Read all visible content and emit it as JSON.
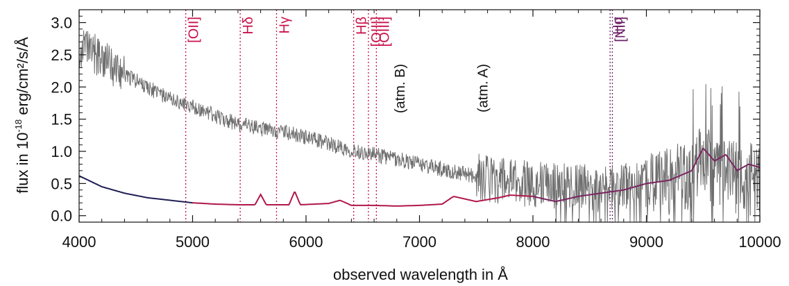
{
  "chart_data": {
    "type": "line",
    "title": "",
    "xlabel": "observed wavelength in Å",
    "ylabel_parts": {
      "prefix": "flux in 10",
      "exponent": "-18",
      "suffix": " erg/cm²/s/Å"
    },
    "xlim": [
      4000,
      10000
    ],
    "ylim": [
      -0.1,
      3.2
    ],
    "xticks": [
      4000,
      5000,
      6000,
      7000,
      8000,
      9000,
      10000
    ],
    "yticks": [
      0.0,
      0.5,
      1.0,
      1.5,
      2.0,
      2.5,
      3.0
    ],
    "xtick_labels": [
      "4000",
      "5000",
      "6000",
      "7000",
      "8000",
      "9000",
      "10000"
    ],
    "ytick_labels": [
      "0.0",
      "0.5",
      "1.0",
      "1.5",
      "2.0",
      "2.5",
      "3.0"
    ],
    "colors": {
      "observed": "#6e6e6e",
      "model_blue": "#1c1c52",
      "model_red": "#b0164a",
      "model_purple": "#7a2560",
      "line_red": "#c8104a",
      "line_purple": "#6e2068",
      "atm": "#111111"
    },
    "series": [
      {
        "role": "observed",
        "x": [
          4000,
          4100,
          4200,
          4300,
          4400,
          4500,
          4600,
          4700,
          4800,
          4900,
          5000,
          5200,
          5400,
          5600,
          5800,
          6000,
          6200,
          6400,
          6600,
          6800,
          7000,
          7200,
          7400,
          7600,
          7800,
          8000,
          8200,
          8400,
          8600,
          8800,
          9000,
          9200,
          9400,
          9500,
          9600,
          9800,
          10000
        ],
        "y": [
          2.6,
          2.55,
          2.45,
          2.3,
          2.2,
          2.1,
          2.0,
          1.9,
          1.82,
          1.75,
          1.7,
          1.55,
          1.42,
          1.35,
          1.3,
          1.22,
          1.12,
          1.02,
          0.95,
          0.88,
          0.8,
          0.72,
          0.65,
          0.58,
          0.52,
          0.5,
          0.48,
          0.45,
          0.42,
          0.45,
          0.5,
          0.55,
          0.65,
          0.85,
          0.7,
          0.6,
          0.55
        ]
      },
      {
        "role": "model",
        "x": [
          4000,
          4200,
          4400,
          4600,
          4800,
          5000,
          5200,
          5400,
          5550,
          5600,
          5650,
          5850,
          5900,
          5950,
          6200,
          6300,
          6400,
          6600,
          6800,
          7000,
          7200,
          7300,
          7500,
          7700,
          7800,
          8000,
          8200,
          8400,
          8600,
          8800,
          9000,
          9200,
          9400,
          9500,
          9600,
          9700,
          9800,
          9900,
          10000
        ],
        "y": [
          0.62,
          0.45,
          0.35,
          0.28,
          0.24,
          0.2,
          0.18,
          0.17,
          0.17,
          0.33,
          0.17,
          0.17,
          0.38,
          0.17,
          0.19,
          0.24,
          0.16,
          0.16,
          0.15,
          0.16,
          0.18,
          0.3,
          0.22,
          0.28,
          0.32,
          0.3,
          0.22,
          0.3,
          0.35,
          0.4,
          0.5,
          0.55,
          0.7,
          1.05,
          0.85,
          0.95,
          0.7,
          0.8,
          0.75
        ]
      }
    ],
    "emission_lines": [
      {
        "label": "[OII]",
        "x": 4940,
        "group": "red"
      },
      {
        "label": "Hδ",
        "x": 5420,
        "group": "red"
      },
      {
        "label": "Hγ",
        "x": 5740,
        "group": "red"
      },
      {
        "label": "Hβ",
        "x": 6420,
        "group": "red"
      },
      {
        "label": "[OIII]",
        "x": 6550,
        "group": "red"
      },
      {
        "label": "[OIII]",
        "x": 6620,
        "group": "red"
      },
      {
        "label": "Hα",
        "x": 8680,
        "group": "purple"
      },
      {
        "label": "[NII]",
        "x": 8700,
        "group": "purple"
      }
    ],
    "atmospheric_labels": [
      {
        "label": "(atm. B)",
        "x": 6870
      },
      {
        "label": "(atm. A)",
        "x": 7600
      }
    ]
  }
}
